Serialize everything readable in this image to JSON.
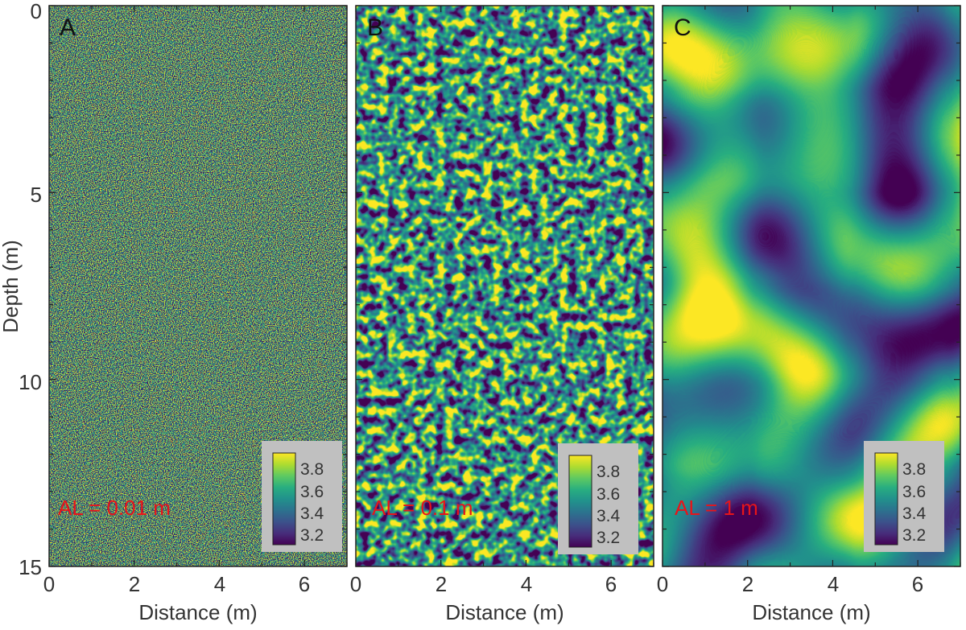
{
  "chart_data": [
    {
      "type": "heatmap",
      "panel_label": "A",
      "annotation": "AL = 0.01 m",
      "correlation_length_m": 0.01,
      "xlabel": "Distance (m)",
      "ylabel": "Depth (m)",
      "xlim": [
        0,
        7
      ],
      "ylim": [
        0,
        15
      ],
      "y_inverted": true,
      "x_ticks": [
        "0",
        "2",
        "4",
        "6"
      ],
      "y_ticks": [
        "0",
        "5",
        "10",
        "15"
      ],
      "colorbar": {
        "range": [
          3.1,
          3.9
        ],
        "tick_labels": [
          "3.8",
          "3.6",
          "3.4",
          "3.2"
        ],
        "colormap": "viridis",
        "placement": "bottom-right"
      }
    },
    {
      "type": "heatmap",
      "panel_label": "B",
      "annotation": "AL = 0.1 m",
      "correlation_length_m": 0.1,
      "xlabel": "Distance (m)",
      "xlim": [
        0,
        7
      ],
      "ylim": [
        0,
        15
      ],
      "y_inverted": true,
      "x_ticks": [
        "0",
        "2",
        "4",
        "6"
      ],
      "colorbar": {
        "range": [
          3.1,
          3.9
        ],
        "tick_labels": [
          "3.8",
          "3.6",
          "3.4",
          "3.2"
        ],
        "colormap": "viridis",
        "placement": "bottom-right"
      }
    },
    {
      "type": "heatmap",
      "panel_label": "C",
      "annotation": "AL = 1 m",
      "correlation_length_m": 1,
      "xlabel": "Distance (m)",
      "xlim": [
        0,
        7
      ],
      "ylim": [
        0,
        15
      ],
      "y_inverted": true,
      "x_ticks": [
        "0",
        "2",
        "4",
        "6"
      ],
      "colorbar": {
        "range": [
          3.1,
          3.9
        ],
        "tick_labels": [
          "3.8",
          "3.6",
          "3.4",
          "3.2"
        ],
        "colormap": "viridis",
        "placement": "bottom-right"
      }
    }
  ],
  "colors": {
    "annotation": "#e8141a",
    "colorbar_box": "#c0c0c0",
    "axis": "#222222",
    "viridis_low": "#440154",
    "viridis_mid": "#21918c",
    "viridis_high": "#fde725"
  }
}
